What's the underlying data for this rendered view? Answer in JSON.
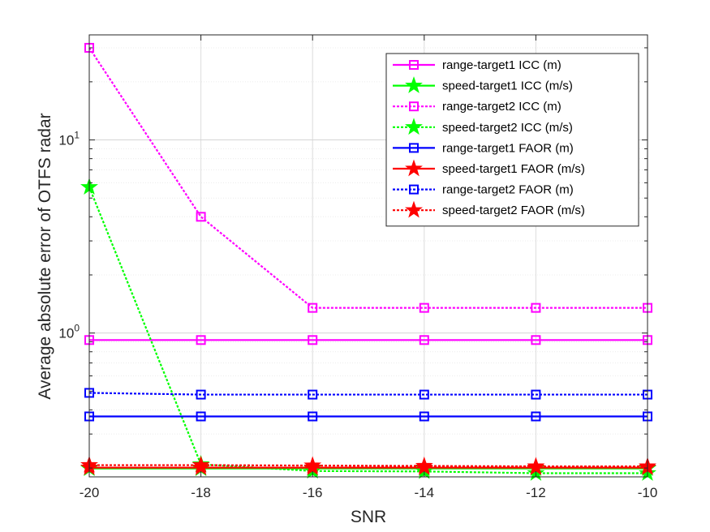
{
  "chart_data": {
    "type": "line",
    "title": "",
    "xlabel": "SNR",
    "ylabel": "Average absolute error of OTFS radar",
    "x": [
      -20,
      -18,
      -16,
      -14,
      -12,
      -10
    ],
    "xlim": [
      -20,
      -10
    ],
    "ylim": [
      0.18,
      35
    ],
    "yscale": "log",
    "x_tick_labels": [
      "-20",
      "-18",
      "-16",
      "-14",
      "-12",
      "-10"
    ],
    "y_tick_major": [
      {
        "base": "10",
        "exp": "0",
        "value": 1
      },
      {
        "base": "10",
        "exp": "1",
        "value": 10
      }
    ],
    "grid": true,
    "legend_position": "top-right",
    "series": [
      {
        "name": "range-target1 ICC (m)",
        "color": "#ff00ff",
        "dash": "solid",
        "marker": "square",
        "values": [
          0.92,
          0.92,
          0.92,
          0.92,
          0.92,
          0.92
        ]
      },
      {
        "name": "speed-target1 ICC (m/s)",
        "color": "#00ff00",
        "dash": "solid",
        "marker": "star",
        "values": [
          0.199,
          0.199,
          0.199,
          0.199,
          0.199,
          0.199
        ]
      },
      {
        "name": "range-target2 ICC (m)",
        "color": "#ff00ff",
        "dash": "dotted",
        "marker": "square",
        "values": [
          30,
          4.0,
          1.35,
          1.35,
          1.35,
          1.35
        ]
      },
      {
        "name": "speed-target2 ICC (m/s)",
        "color": "#00ff00",
        "dash": "dotted",
        "marker": "star",
        "values": [
          5.7,
          0.209,
          0.193,
          0.192,
          0.188,
          0.188
        ]
      },
      {
        "name": "range-target1 FAOR (m)",
        "color": "#0000ff",
        "dash": "solid",
        "marker": "square",
        "values": [
          0.37,
          0.37,
          0.37,
          0.37,
          0.37,
          0.37
        ]
      },
      {
        "name": "speed-target1 FAOR (m/s)",
        "color": "#ff0000",
        "dash": "solid",
        "marker": "star",
        "values": [
          0.201,
          0.201,
          0.201,
          0.201,
          0.201,
          0.201
        ]
      },
      {
        "name": "range-target2 FAOR (m)",
        "color": "#0000ff",
        "dash": "dotted",
        "marker": "square",
        "values": [
          0.49,
          0.48,
          0.48,
          0.48,
          0.48,
          0.48
        ]
      },
      {
        "name": "speed-target2 FAOR (m/s)",
        "color": "#ff0000",
        "dash": "dotted",
        "marker": "star",
        "values": [
          0.207,
          0.207,
          0.206,
          0.205,
          0.204,
          0.204
        ]
      }
    ]
  }
}
